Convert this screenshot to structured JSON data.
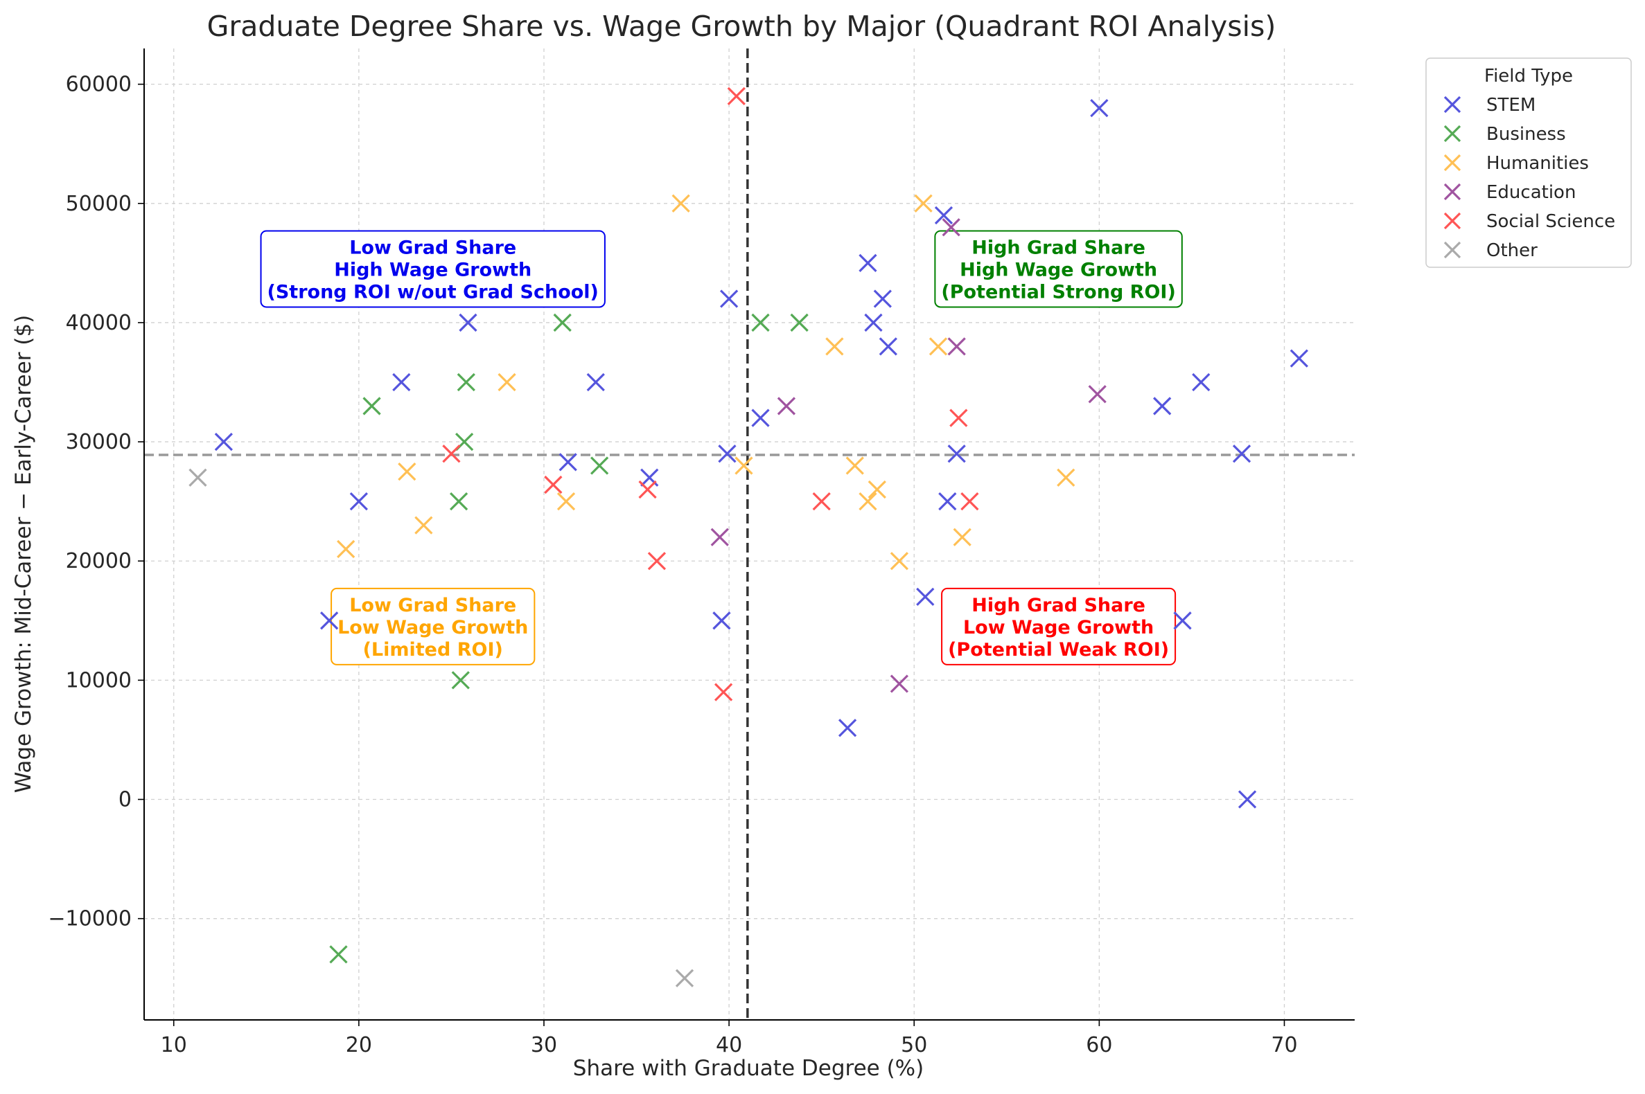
{
  "chart_data": {
    "type": "scatter",
    "title": "Graduate Degree Share vs. Wage Growth by Major (Quadrant ROI Analysis)",
    "xlabel": "Share with Graduate Degree (%)",
    "ylabel": "Wage Growth: Mid-Career − Early-Career ($)",
    "xlim": [
      8.4,
      73.8
    ],
    "ylim": [
      -18500,
      63000
    ],
    "xticks": [
      10,
      20,
      30,
      40,
      50,
      60,
      70
    ],
    "yticks": [
      -10000,
      0,
      10000,
      20000,
      30000,
      40000,
      50000,
      60000
    ],
    "ytick_labels": [
      "−10000",
      "0",
      "10000",
      "20000",
      "30000",
      "40000",
      "50000",
      "60000"
    ],
    "grid": true,
    "legend": {
      "title": "Field Type",
      "placement": "outside-top-right"
    },
    "reference_lines": {
      "x_median": 41.0,
      "y_median": 28900
    },
    "quadrant_labels": [
      {
        "key": "tl",
        "lines": [
          "Low Grad Share",
          "High Wage Growth",
          "(Strong ROI w/out Grad School)"
        ],
        "x": 24.0,
        "y": 44500,
        "color": "#0000ee"
      },
      {
        "key": "tr",
        "lines": [
          "High Grad Share",
          "High Wage Growth",
          "(Potential Strong ROI)"
        ],
        "x": 57.8,
        "y": 44500,
        "color": "#008000"
      },
      {
        "key": "bl",
        "lines": [
          "Low Grad Share",
          "Low Wage Growth",
          "(Limited ROI)"
        ],
        "x": 24.0,
        "y": 14500,
        "color": "#ffa500"
      },
      {
        "key": "br",
        "lines": [
          "High Grad Share",
          "Low Wage Growth",
          "(Potential Weak ROI)"
        ],
        "x": 57.8,
        "y": 14500,
        "color": "#ff0000"
      }
    ],
    "series": [
      {
        "name": "STEM",
        "color": "#5555dd",
        "points": [
          [
            12.7,
            30000
          ],
          [
            18.4,
            15000
          ],
          [
            20.0,
            25000
          ],
          [
            22.3,
            35000
          ],
          [
            25.9,
            40000
          ],
          [
            31.3,
            28300
          ],
          [
            32.8,
            35000
          ],
          [
            35.7,
            27000
          ],
          [
            39.6,
            15000
          ],
          [
            39.9,
            29000
          ],
          [
            40.0,
            42000
          ],
          [
            41.7,
            32000
          ],
          [
            46.4,
            6000
          ],
          [
            47.5,
            45000
          ],
          [
            47.8,
            40000
          ],
          [
            48.3,
            42000
          ],
          [
            48.6,
            38000
          ],
          [
            50.6,
            17000
          ],
          [
            51.6,
            49000
          ],
          [
            51.8,
            25000
          ],
          [
            52.3,
            29000
          ],
          [
            60.0,
            58000
          ],
          [
            63.4,
            33000
          ],
          [
            64.5,
            15000
          ],
          [
            65.5,
            35000
          ],
          [
            67.7,
            29000
          ],
          [
            68.0,
            0
          ],
          [
            70.8,
            37000
          ]
        ]
      },
      {
        "name": "Business",
        "color": "#55aa55",
        "points": [
          [
            18.9,
            -13000
          ],
          [
            20.7,
            33000
          ],
          [
            25.4,
            25000
          ],
          [
            25.5,
            10000
          ],
          [
            25.7,
            30000
          ],
          [
            25.8,
            35000
          ],
          [
            31.0,
            40000
          ],
          [
            33.0,
            28000
          ],
          [
            41.7,
            40000
          ],
          [
            43.8,
            40000
          ]
        ]
      },
      {
        "name": "Humanities",
        "color": "#ffc055",
        "points": [
          [
            19.3,
            21000
          ],
          [
            22.6,
            27500
          ],
          [
            23.5,
            23000
          ],
          [
            28.0,
            35000
          ],
          [
            31.2,
            25000
          ],
          [
            37.4,
            50000
          ],
          [
            40.8,
            28000
          ],
          [
            45.7,
            38000
          ],
          [
            46.8,
            28000
          ],
          [
            47.5,
            25000
          ],
          [
            48.0,
            26000
          ],
          [
            49.2,
            20000
          ],
          [
            50.5,
            50000
          ],
          [
            51.3,
            38000
          ],
          [
            52.6,
            22000
          ],
          [
            58.2,
            27000
          ]
        ]
      },
      {
        "name": "Education",
        "color": "#a054a0",
        "points": [
          [
            39.5,
            22000
          ],
          [
            43.1,
            33000
          ],
          [
            49.2,
            9700
          ],
          [
            52.0,
            48000
          ],
          [
            52.3,
            38000
          ],
          [
            59.9,
            34000
          ]
        ]
      },
      {
        "name": "Social Science",
        "color": "#ff5555",
        "points": [
          [
            25.0,
            29000
          ],
          [
            30.5,
            26400
          ],
          [
            35.6,
            26000
          ],
          [
            36.1,
            20000
          ],
          [
            39.7,
            9000
          ],
          [
            40.4,
            59000
          ],
          [
            45.0,
            25000
          ],
          [
            52.4,
            32000
          ],
          [
            53.0,
            25000
          ]
        ]
      },
      {
        "name": "Other",
        "color": "#aaaaaa",
        "points": [
          [
            11.3,
            27000
          ],
          [
            37.6,
            -15000
          ]
        ]
      }
    ]
  }
}
